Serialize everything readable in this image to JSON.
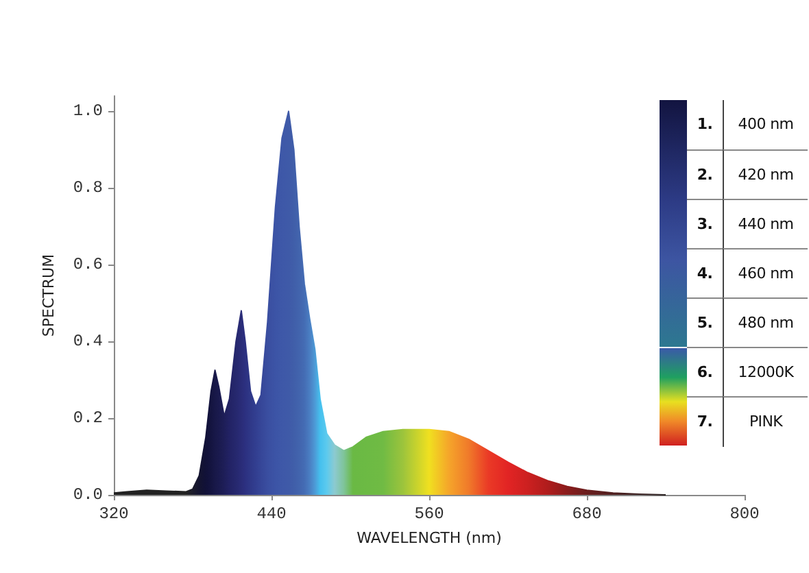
{
  "chart_data": {
    "type": "area",
    "xlabel": "WAVELENGTH (nm)",
    "ylabel": "SPECTRUM",
    "xlim": [
      320,
      800
    ],
    "xticks": [
      320,
      440,
      560,
      680,
      800
    ],
    "ylim": [
      0,
      1.04
    ],
    "yticks": [
      {
        "value": 0,
        "label": "0.0"
      },
      {
        "value": 0.2,
        "label": "0.2"
      },
      {
        "value": 0.4,
        "label": "0.4"
      },
      {
        "value": 0.6,
        "label": "0.6"
      },
      {
        "value": 0.8,
        "label": "0.8"
      },
      {
        "value": 1,
        "label": "1.0"
      }
    ],
    "grid": false,
    "marker": "none",
    "annotations": [
      "1.",
      "400 nm",
      "2.",
      "420 nm",
      "3.",
      "440 nm",
      "4.",
      "460 nm",
      "5.",
      "480 nm",
      "6.",
      "12000K",
      "7.",
      "PINK"
    ],
    "series": [
      {
        "x": [
          320,
          330,
          345,
          360,
          375,
          380,
          385,
          390,
          394,
          397,
          400,
          404,
          408,
          413,
          417,
          420,
          424,
          428,
          432,
          437,
          443,
          448,
          453,
          457,
          461,
          465,
          469,
          473,
          477,
          482,
          488,
          495,
          502,
          512,
          525,
          540,
          560,
          575,
          590,
          605,
          620,
          635,
          650,
          665,
          680,
          700,
          720,
          740
        ],
        "values": [
          0.005,
          0.008,
          0.012,
          0.01,
          0.008,
          0.015,
          0.05,
          0.15,
          0.27,
          0.325,
          0.28,
          0.205,
          0.25,
          0.4,
          0.48,
          0.4,
          0.27,
          0.23,
          0.26,
          0.45,
          0.75,
          0.93,
          1.0,
          0.9,
          0.7,
          0.55,
          0.46,
          0.38,
          0.25,
          0.16,
          0.13,
          0.115,
          0.125,
          0.15,
          0.165,
          0.17,
          0.17,
          0.165,
          0.145,
          0.115,
          0.085,
          0.058,
          0.037,
          0.022,
          0.012,
          0.005,
          0.002,
          0
        ],
        "colors": [
          "#222222",
          "#222222",
          "#222222",
          "#222222",
          "#222222",
          "#1c1c2c",
          "#141430",
          "#111138",
          "#141440",
          "#181848",
          "#1a1a4e",
          "#1e1e58",
          "#222264",
          "#26286e",
          "#2a2c78",
          "#2c3080",
          "#2f3888",
          "#323e90",
          "#364698",
          "#3a4ea0",
          "#3c54a6",
          "#3e58a8",
          "#3f5aa8",
          "#405ea9",
          "#4264ad",
          "#446cb4",
          "#4a7ec2",
          "#4d9ad6",
          "#45c0ee",
          "#5ccaee",
          "#8ccad0",
          "#7fc49a",
          "#6ab944",
          "#6cba44",
          "#70bb44",
          "#9cc43c",
          "#f0e020",
          "#f5a52a",
          "#f07a2a",
          "#ea3a26",
          "#e22424",
          "#cc2020",
          "#b01c1c",
          "#8a1c1c",
          "#6a1e1e",
          "#502020",
          "#3a2222",
          "#2a2222"
        ]
      }
    ]
  }
}
